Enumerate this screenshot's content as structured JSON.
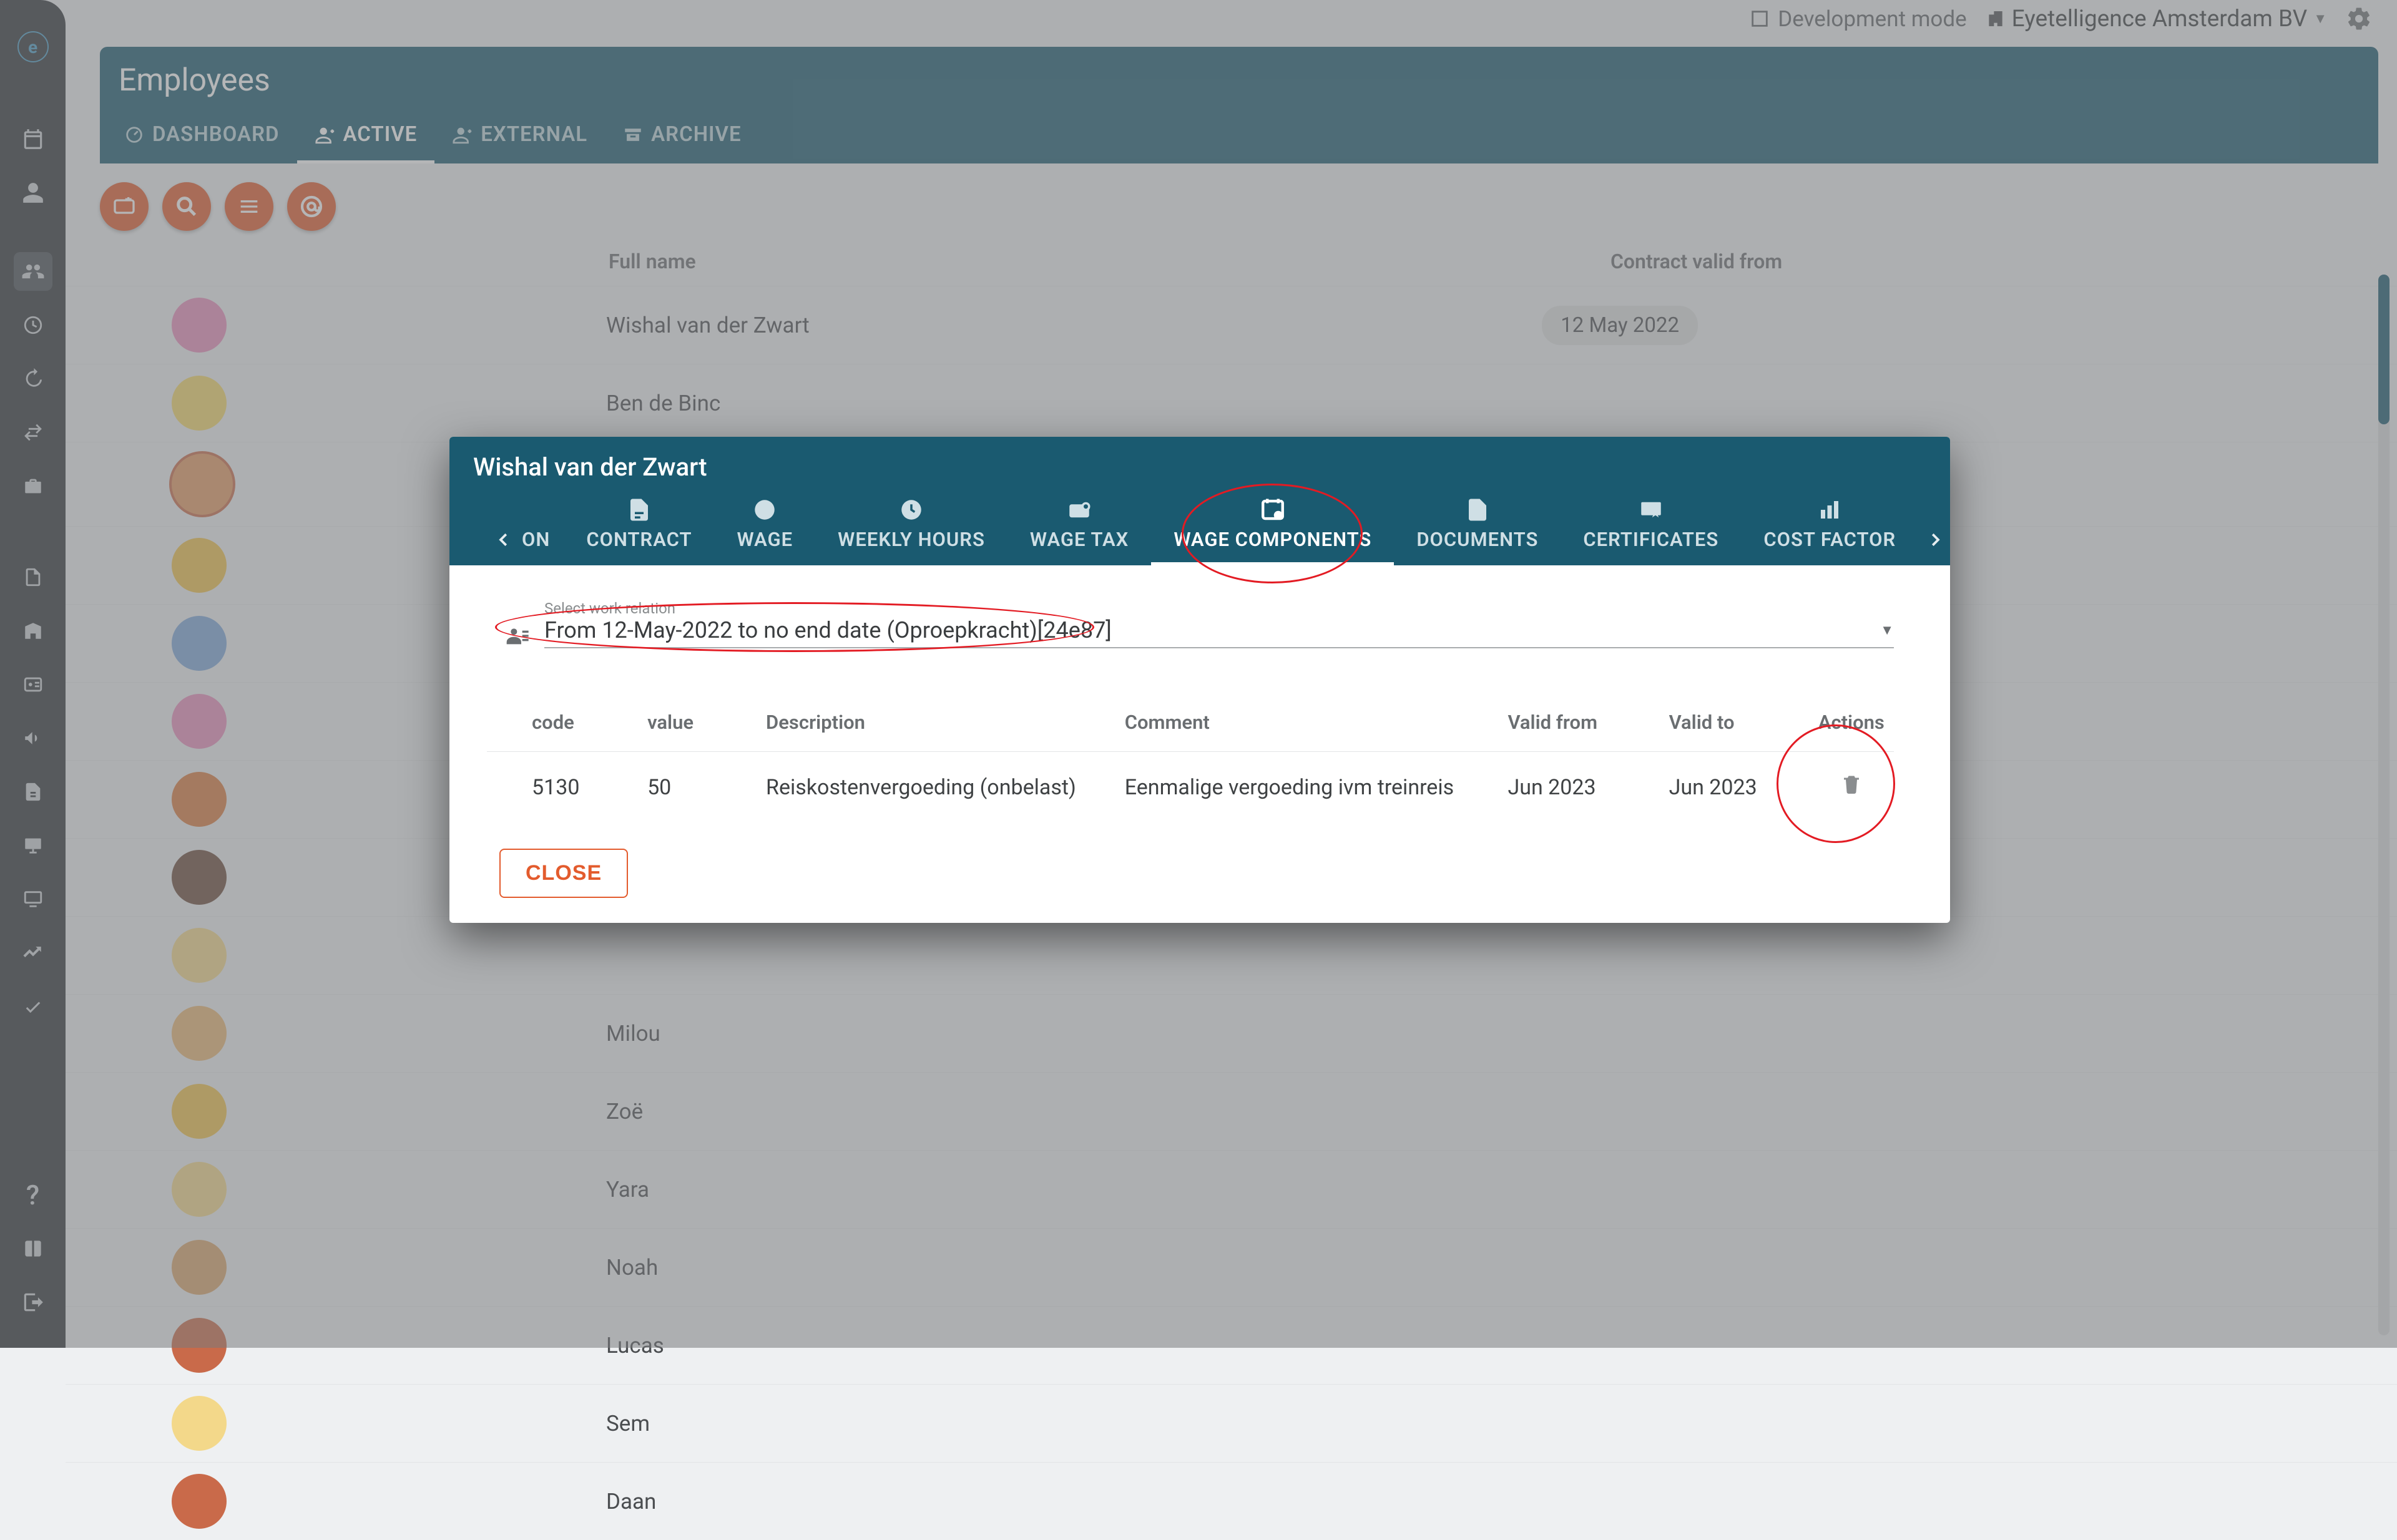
{
  "topbar": {
    "dev_mode_label": "Development mode",
    "company_name": "Eyetelligence Amsterdam BV"
  },
  "page": {
    "title": "Employees",
    "tabs": [
      {
        "icon": "dashboard",
        "label": "DASHBOARD"
      },
      {
        "icon": "person-plus",
        "label": "ACTIVE"
      },
      {
        "icon": "person-plus",
        "label": "EXTERNAL"
      },
      {
        "icon": "archive",
        "label": "ARCHIVE"
      }
    ],
    "active_tab": 1,
    "columns": {
      "full_name": "Full name",
      "contract_from": "Contract valid from"
    },
    "rows": [
      {
        "avatar": "#e98fbd",
        "name": "Wishal van der Zwart",
        "contract_from": "12 May 2022"
      },
      {
        "avatar": "#f3d769",
        "name": "Ben de Binc"
      },
      {
        "avatar": "#e49a63",
        "name": ""
      },
      {
        "avatar": "#f0c04a",
        "name": ""
      },
      {
        "avatar": "#7da6d9",
        "name": ""
      },
      {
        "avatar": "#e98fbd",
        "name": ""
      },
      {
        "avatar": "#d97a3e",
        "name": ""
      },
      {
        "avatar": "#6b4a3a",
        "name": ""
      },
      {
        "avatar": "#f3d88a",
        "name": ""
      },
      {
        "avatar": "#e8b573",
        "name": "Milou"
      },
      {
        "avatar": "#f0c04a",
        "name": "Zoë"
      },
      {
        "avatar": "#f3d88a",
        "name": "Yara"
      },
      {
        "avatar": "#d9a56a",
        "name": "Noah"
      },
      {
        "avatar": "#c96a4a",
        "name": "Lucas"
      },
      {
        "avatar": "#f3d88a",
        "name": "Sem"
      },
      {
        "avatar": "#c96a4a",
        "name": "Daan"
      }
    ]
  },
  "modal": {
    "person_name": "Wishal van der Zwart",
    "tabs_partial_first": "ON",
    "tabs": [
      {
        "label": "CONTRACT"
      },
      {
        "label": "WAGE"
      },
      {
        "label": "WEEKLY HOURS"
      },
      {
        "label": "WAGE TAX"
      },
      {
        "label": "WAGE COMPONENTS"
      },
      {
        "label": "DOCUMENTS"
      },
      {
        "label": "CERTIFICATES"
      },
      {
        "label": "COST FACTOR"
      }
    ],
    "active_tab": 4,
    "select_label": "Select work relation",
    "select_value": "From 12-May-2022 to no end date (Oproepkracht)[24e87]",
    "columns": {
      "code": "code",
      "value": "value",
      "desc": "Description",
      "comment": "Comment",
      "valid_from": "Valid from",
      "valid_to": "Valid to",
      "actions": "Actions"
    },
    "rows": [
      {
        "code": "5130",
        "value": "50",
        "desc": "Reiskostenvergoeding (onbelast)",
        "comment": "Eenmalige vergoeding ivm treinreis",
        "valid_from": "Jun 2023",
        "valid_to": "Jun 2023"
      }
    ],
    "close_label": "CLOSE"
  },
  "colors": {
    "brand_teal": "#1a5a70",
    "accent_orange": "#e35b2d",
    "anno_red": "#e31b23"
  }
}
